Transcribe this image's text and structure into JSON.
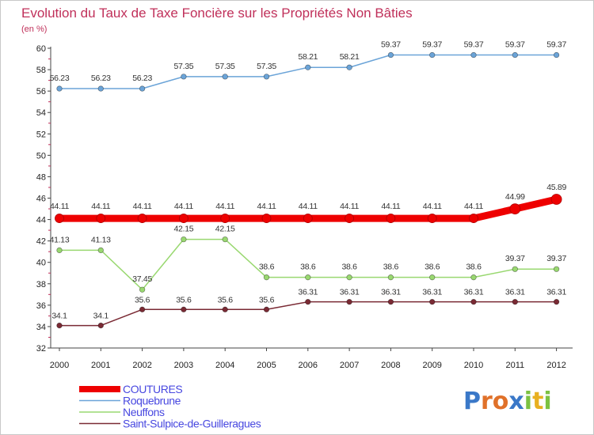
{
  "chart_data": {
    "type": "line",
    "title": "Evolution du Taux de Taxe Foncière sur les Propriétés Non Bâties",
    "subtitle": "(en %)",
    "xlabel": "",
    "ylabel": "",
    "ylim": [
      32,
      60
    ],
    "yticks": [
      32,
      34,
      36,
      38,
      40,
      42,
      44,
      46,
      48,
      50,
      52,
      54,
      56,
      58,
      60
    ],
    "grid": false,
    "legend_position": "bottom-left",
    "categories": [
      "2000",
      "2001",
      "2002",
      "2003",
      "2004",
      "2005",
      "2006",
      "2007",
      "2008",
      "2009",
      "2010",
      "2011",
      "2012"
    ],
    "series": [
      {
        "name": "COUTURES",
        "color": "#ee0000",
        "values": [
          44.11,
          44.11,
          44.11,
          44.11,
          44.11,
          44.11,
          44.11,
          44.11,
          44.11,
          44.11,
          44.11,
          44.99,
          45.89
        ],
        "labels": [
          "44.11",
          "44.11",
          "44.11",
          "44.11",
          "44.11",
          "44.11",
          "44.11",
          "44.11",
          "44.11",
          "44.11",
          "44.11",
          "44.99",
          "45.89"
        ]
      },
      {
        "name": "Roquebrune",
        "color": "#6ba4d8",
        "values": [
          56.23,
          56.23,
          56.23,
          57.35,
          57.35,
          57.35,
          58.21,
          58.21,
          59.37,
          59.37,
          59.37,
          59.37,
          59.37
        ],
        "labels": [
          "56.23",
          "56.23",
          "56.23",
          "57.35",
          "57.35",
          "57.35",
          "58.21",
          "58.21",
          "59.37",
          "59.37",
          "59.37",
          "59.37",
          "59.37"
        ]
      },
      {
        "name": "Neuffons",
        "color": "#99d870",
        "values": [
          41.13,
          41.13,
          37.45,
          42.15,
          42.15,
          38.6,
          38.6,
          38.6,
          38.6,
          38.6,
          38.6,
          39.37,
          39.37
        ],
        "labels": [
          "41.13",
          "41.13",
          "37.45",
          "42.15",
          "42.15",
          "38.6",
          "38.6",
          "38.6",
          "38.6",
          "38.6",
          "38.6",
          "39.37",
          "39.37"
        ]
      },
      {
        "name": "Saint-Sulpice-de-Guilleragues",
        "color": "#7a2a34",
        "values": [
          34.1,
          34.1,
          35.6,
          35.6,
          35.6,
          35.6,
          36.31,
          36.31,
          36.31,
          36.31,
          36.31,
          36.31,
          36.31
        ],
        "labels": [
          "34.1",
          "34.1",
          "35.6",
          "35.6",
          "35.6",
          "35.6",
          "36.31",
          "36.31",
          "36.31",
          "36.31",
          "36.31",
          "36.31",
          "36.31"
        ]
      }
    ]
  },
  "logo": {
    "letters": [
      "P",
      "r",
      "o",
      "x",
      "i",
      "t",
      "i"
    ],
    "colors": [
      "#3a78c8",
      "#e0712a",
      "#e0712a",
      "#3a78c8",
      "#7cc242",
      "#e8b020",
      "#7cc242"
    ]
  }
}
